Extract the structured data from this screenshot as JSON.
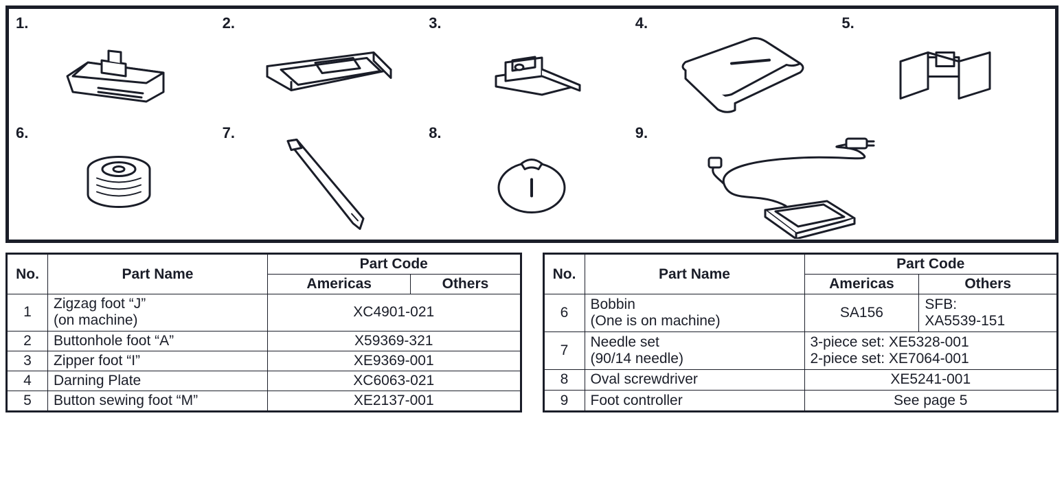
{
  "colors": {
    "ink": "#1a1d28",
    "bg": "#ffffff"
  },
  "diagram": {
    "items": [
      {
        "num": "1.",
        "icon": "zigzag-foot"
      },
      {
        "num": "2.",
        "icon": "buttonhole-foot"
      },
      {
        "num": "3.",
        "icon": "zipper-foot"
      },
      {
        "num": "4.",
        "icon": "darning-plate"
      },
      {
        "num": "5.",
        "icon": "button-sewing-foot"
      },
      {
        "num": "6.",
        "icon": "bobbin"
      },
      {
        "num": "7.",
        "icon": "needle"
      },
      {
        "num": "8.",
        "icon": "oval-screwdriver"
      },
      {
        "num": "9.",
        "icon": "foot-controller"
      }
    ]
  },
  "tables": {
    "headers": {
      "no": "No.",
      "part_name": "Part Name",
      "part_code": "Part Code",
      "americas": "Americas",
      "others": "Others"
    },
    "left": [
      {
        "no": "1",
        "name": "Zigzag foot “J”\n(on machine)",
        "code_span": "XC4901-021"
      },
      {
        "no": "2",
        "name": "Buttonhole foot “A”",
        "code_span": "X59369-321"
      },
      {
        "no": "3",
        "name": "Zipper foot “I”",
        "code_span": "XE9369-001"
      },
      {
        "no": "4",
        "name": "Darning Plate",
        "code_span": "XC6063-021"
      },
      {
        "no": "5",
        "name": "Button sewing foot “M”",
        "code_span": "XE2137-001"
      }
    ],
    "right": [
      {
        "no": "6",
        "name": "Bobbin\n(One is on machine)",
        "americas": "SA156",
        "others": "SFB:\nXA5539-151"
      },
      {
        "no": "7",
        "name": "Needle set\n(90/14 needle)",
        "code_span": "3-piece set: XE5328-001\n2-piece set: XE7064-001",
        "code_span_align": "left"
      },
      {
        "no": "8",
        "name": "Oval screwdriver",
        "code_span": "XE5241-001"
      },
      {
        "no": "9",
        "name": "Foot controller",
        "code_span": "See page 5"
      }
    ]
  }
}
